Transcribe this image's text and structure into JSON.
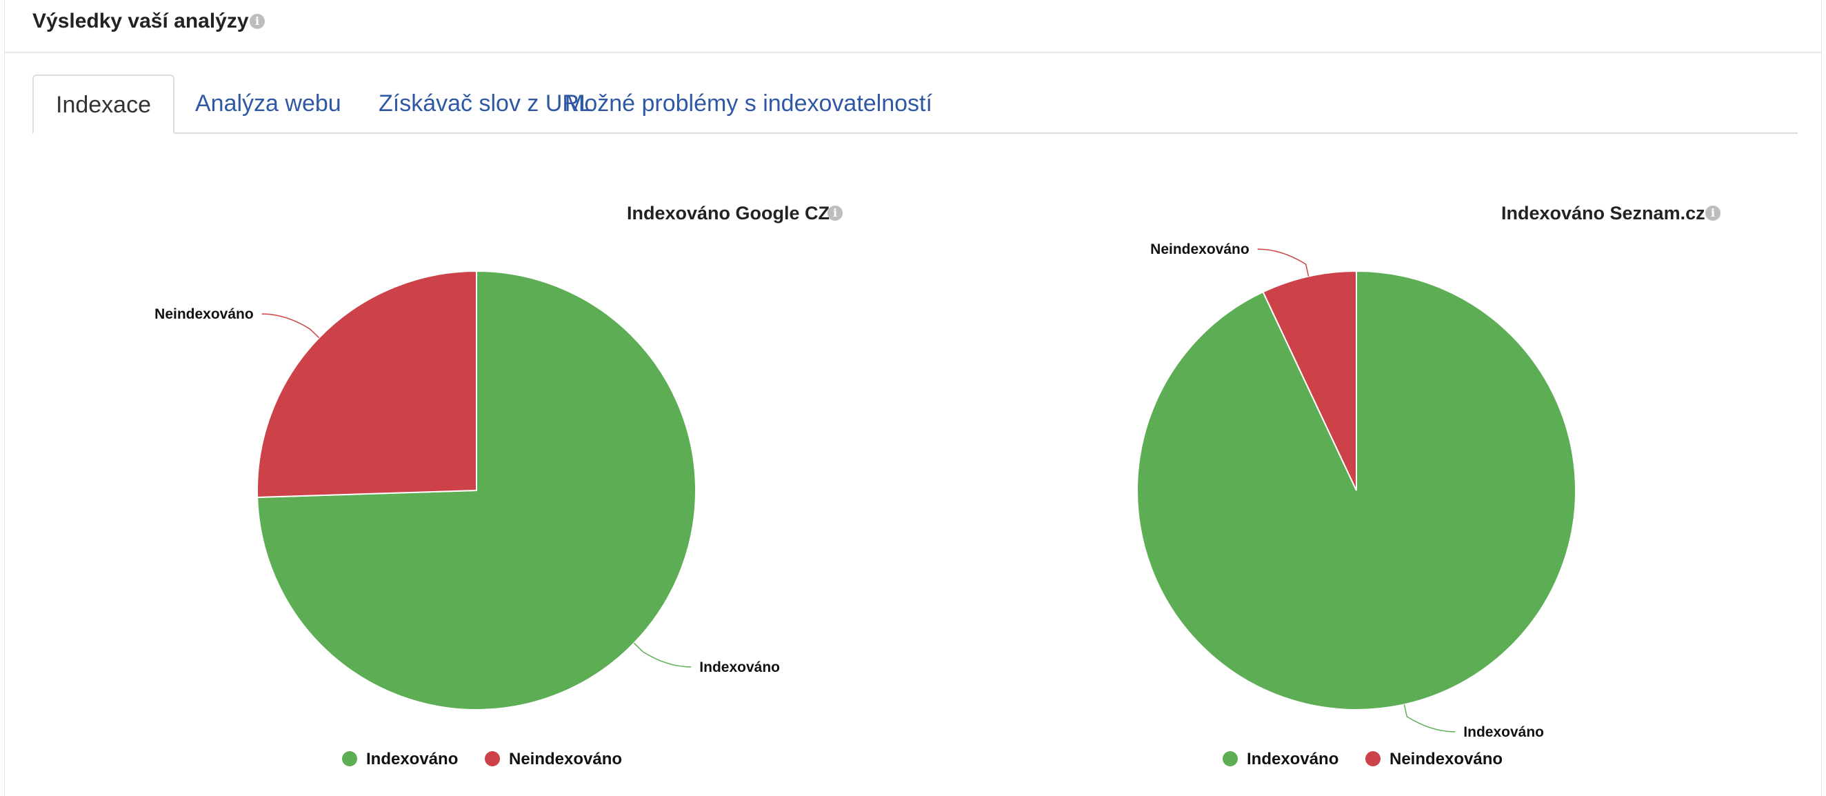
{
  "header": {
    "title": "Výsledky vaší analýzy",
    "info_icon": "info-icon"
  },
  "tabs": [
    {
      "label": "Indexace",
      "active": true
    },
    {
      "label": "Analýza webu",
      "active": false
    },
    {
      "label": "Získávač slov z URL",
      "active": false
    },
    {
      "label": "Možné problémy s indexovatelností",
      "active": false
    }
  ],
  "colors": {
    "indexed": "#5dad55",
    "not_indexed": "#cc4248",
    "tab_link": "#2f58a4"
  },
  "chart_data": [
    {
      "type": "pie",
      "title": "Indexováno Google CZ",
      "slices": [
        {
          "label": "Indexováno",
          "value": 74.5,
          "color": "#5dad55"
        },
        {
          "label": "Neindexováno",
          "value": 25.5,
          "color": "#cc4248"
        }
      ],
      "legend": {
        "placement": "bottom",
        "items": [
          "Indexováno",
          "Neindexováno"
        ]
      }
    },
    {
      "type": "pie",
      "title": "Indexováno Seznam.cz",
      "slices": [
        {
          "label": "Indexováno",
          "value": 93,
          "color": "#5dad55"
        },
        {
          "label": "Neindexováno",
          "value": 7,
          "color": "#cc4248"
        }
      ],
      "legend": {
        "placement": "bottom",
        "items": [
          "Indexováno",
          "Neindexováno"
        ]
      }
    }
  ]
}
